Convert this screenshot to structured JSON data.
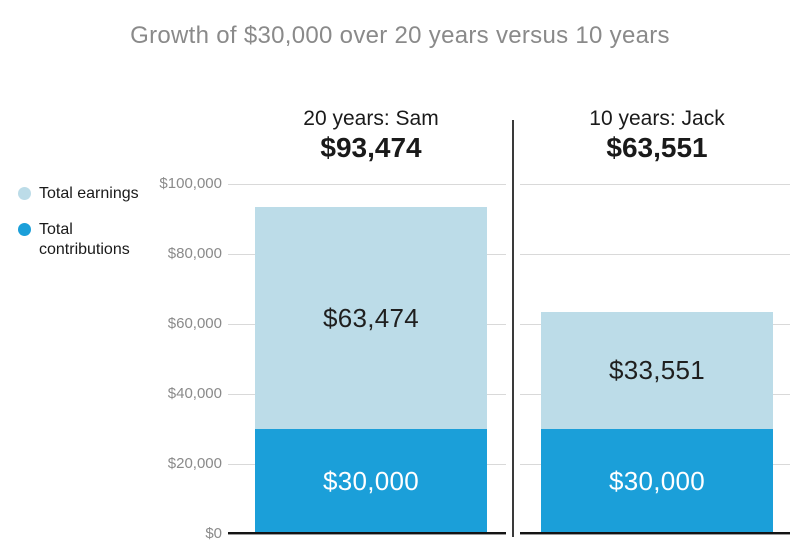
{
  "title": "Growth of $30,000 over 20 years versus 10 years",
  "legend": {
    "items": [
      {
        "label": "Total earnings",
        "color": "#bcdce8"
      },
      {
        "label": "Total contributions",
        "color": "#1b9fd9"
      }
    ]
  },
  "y_axis": {
    "ticks": [
      "$100,000",
      "$80,000",
      "$60,000",
      "$40,000",
      "$20,000",
      "$0"
    ]
  },
  "panels": [
    {
      "header": "20 years: Sam",
      "total": "$93,474",
      "earnings_label": "$63,474",
      "contributions_label": "$30,000"
    },
    {
      "header": "10 years: Jack",
      "total": "$63,551",
      "earnings_label": "$33,551",
      "contributions_label": "$30,000"
    }
  ],
  "chart_data": {
    "type": "bar",
    "stacked": true,
    "title": "Growth of $30,000 over 20 years versus 10 years",
    "categories": [
      "20 years: Sam",
      "10 years: Jack"
    ],
    "series": [
      {
        "name": "Total contributions",
        "values": [
          30000,
          30000
        ],
        "color": "#1b9fd9"
      },
      {
        "name": "Total earnings",
        "values": [
          63474,
          33551
        ],
        "color": "#bcdce8"
      }
    ],
    "totals": [
      93474,
      63551
    ],
    "ylabel": "",
    "xlabel": "",
    "ylim": [
      0,
      100000
    ],
    "y_tick_interval": 20000,
    "grid": true,
    "legend_position": "left"
  }
}
